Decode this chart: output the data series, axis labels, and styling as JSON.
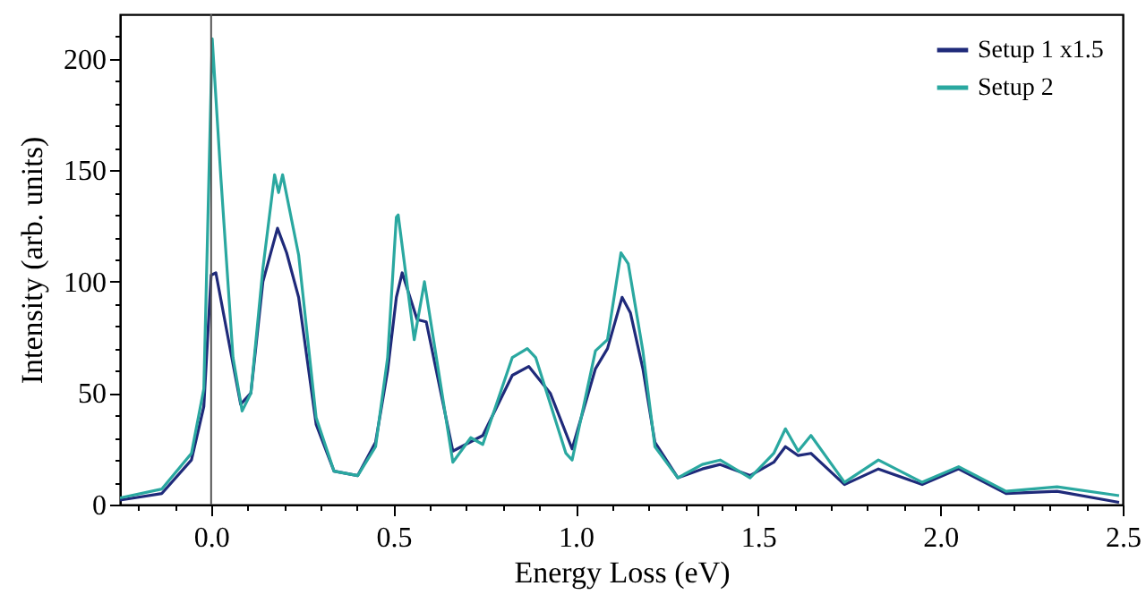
{
  "chart_data": {
    "type": "line",
    "xlabel": "Energy Loss (eV)",
    "ylabel": "Intensity (arb. units)",
    "xlim": [
      -0.25,
      2.5
    ],
    "ylim": [
      0,
      220
    ],
    "xticks": [
      {
        "value": -0.2,
        "label": null
      },
      {
        "value": -0.1,
        "label": null
      },
      {
        "value": 0,
        "label": "0.0"
      },
      {
        "value": 0.1,
        "label": null
      },
      {
        "value": 0.2,
        "label": null
      },
      {
        "value": 0.3,
        "label": null
      },
      {
        "value": 0.4,
        "label": null
      },
      {
        "value": 0.5,
        "label": "0.5"
      },
      {
        "value": 0.6,
        "label": null
      },
      {
        "value": 0.7,
        "label": null
      },
      {
        "value": 0.8,
        "label": null
      },
      {
        "value": 0.9,
        "label": null
      },
      {
        "value": 1,
        "label": "1.0"
      },
      {
        "value": 1.1,
        "label": null
      },
      {
        "value": 1.2,
        "label": null
      },
      {
        "value": 1.3,
        "label": null
      },
      {
        "value": 1.4,
        "label": null
      },
      {
        "value": 1.5,
        "label": "1.5"
      },
      {
        "value": 1.6,
        "label": null
      },
      {
        "value": 1.7,
        "label": null
      },
      {
        "value": 1.8,
        "label": null
      },
      {
        "value": 1.9,
        "label": null
      },
      {
        "value": 2,
        "label": "2.0"
      },
      {
        "value": 2.1,
        "label": null
      },
      {
        "value": 2.2,
        "label": null
      },
      {
        "value": 2.3,
        "label": null
      },
      {
        "value": 2.4,
        "label": null
      },
      {
        "value": 2.5,
        "label": "2.5"
      }
    ],
    "yticks": [
      0,
      {
        "value": 10,
        "label": null
      },
      {
        "value": 20,
        "label": null
      },
      {
        "value": 30,
        "label": null
      },
      {
        "value": 40,
        "label": null
      },
      50,
      {
        "value": 60,
        "label": null
      },
      {
        "value": 70,
        "label": null
      },
      {
        "value": 80,
        "label": null
      },
      {
        "value": 90,
        "label": null
      },
      100,
      {
        "value": 110,
        "label": null
      },
      {
        "value": 120,
        "label": null
      },
      {
        "value": 130,
        "label": null
      },
      {
        "value": 140,
        "label": null
      },
      150,
      {
        "value": 160,
        "label": null
      },
      {
        "value": 170,
        "label": null
      },
      {
        "value": 180,
        "label": null
      },
      {
        "value": 190,
        "label": null
      },
      200,
      {
        "value": 210,
        "label": null
      }
    ],
    "grid": false,
    "legend": "top right",
    "line_style": "solid",
    "ref_lines": [
      {
        "axis": "x",
        "value": 0,
        "color": "#555555"
      }
    ],
    "series": [
      {
        "name": "Setup 1 x1.5",
        "color": "#1f2a7a",
        "x": [
          -0.25,
          -0.135,
          -0.054,
          -0.02,
          0,
          0.013,
          0.044,
          0.081,
          0.109,
          0.142,
          0.182,
          0.207,
          0.24,
          0.288,
          0.337,
          0.402,
          0.451,
          0.484,
          0.508,
          0.524,
          0.565,
          0.59,
          0.663,
          0.745,
          0.826,
          0.871,
          0.93,
          0.99,
          1.054,
          1.087,
          1.127,
          1.15,
          1.184,
          1.217,
          1.28,
          1.347,
          1.396,
          1.478,
          1.543,
          1.575,
          1.61,
          1.645,
          1.737,
          1.83,
          1.95,
          2.05,
          2.18,
          2.32,
          2.49
        ],
        "values": [
          2,
          5,
          20,
          44,
          103,
          104,
          77,
          45,
          50,
          100,
          124,
          113,
          93,
          36,
          15,
          13,
          28,
          60,
          93,
          104,
          83,
          82,
          24,
          31,
          58,
          62,
          50,
          25,
          61,
          70,
          93,
          86,
          61,
          28,
          12,
          16,
          18,
          13,
          19,
          26,
          22,
          23,
          9,
          16,
          9,
          16,
          5,
          6,
          1
        ]
      },
      {
        "name": "Setup 2",
        "color": "#2aa8a0",
        "x": [
          -0.25,
          -0.135,
          -0.054,
          -0.02,
          0.003,
          0.027,
          0.06,
          0.085,
          0.109,
          0.142,
          0.174,
          0.185,
          0.196,
          0.24,
          0.288,
          0.337,
          0.402,
          0.451,
          0.484,
          0.508,
          0.513,
          0.557,
          0.585,
          0.663,
          0.712,
          0.745,
          0.826,
          0.867,
          0.89,
          0.973,
          0.99,
          1.054,
          1.087,
          1.124,
          1.144,
          1.184,
          1.217,
          1.28,
          1.347,
          1.396,
          1.478,
          1.543,
          1.575,
          1.61,
          1.645,
          1.737,
          1.83,
          1.95,
          2.05,
          2.18,
          2.32,
          2.49
        ],
        "values": [
          3,
          7,
          23,
          52,
          209,
          146,
          66,
          42,
          50,
          106,
          148,
          140,
          148,
          112,
          39,
          15,
          13,
          26,
          66,
          129,
          130,
          74,
          100,
          19,
          30,
          27,
          66,
          70,
          66,
          23,
          20,
          69,
          74,
          113,
          108,
          69,
          26,
          12,
          18,
          20,
          12,
          23,
          34,
          24,
          31,
          10,
          20,
          10,
          17,
          6,
          8,
          4
        ]
      }
    ]
  }
}
